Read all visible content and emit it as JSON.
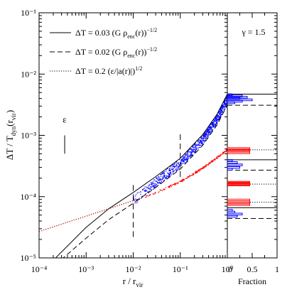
{
  "chart_data": [
    {
      "type": "line",
      "xlabel_main": "r / r",
      "xlabel_sub": "vir",
      "ylabel_main": "ΔT / T",
      "ylabel_sub1": "dyn",
      "ylabel_mid": "(r",
      "ylabel_sub2": "vir",
      "ylabel_end": ")",
      "x_scale": "log",
      "y_scale": "log",
      "xlim": [
        0.0001,
        1
      ],
      "ylim": [
        1e-05,
        0.1
      ],
      "x_tick_labels": [
        "10⁻⁴",
        "10⁻³",
        "10⁻²",
        "10⁻¹",
        "10⁰"
      ],
      "y_tick_labels": [
        "10⁻⁵",
        "10⁻⁴",
        "10⁻³",
        "10⁻²",
        "10⁻¹"
      ],
      "legend_placement": "top-left",
      "legend": [
        {
          "style": "solid",
          "text": "ΔT = 0.03 (G ρ_enc(r))^-1/2",
          "lhs": "ΔT = 0.03 (G ρ",
          "sub": "enc",
          "rhs": "(r))",
          "sup": "−1/2"
        },
        {
          "style": "dashed",
          "text": "ΔT = 0.02 (G ρ_enc(r))^-1/2",
          "lhs": "ΔT = 0.02 (G ρ",
          "sub": "enc",
          "rhs": "(r))",
          "sup": "−1/2"
        },
        {
          "style": "dotted",
          "text": "ΔT = 0.2 (ε/|a(r)|)^1/2",
          "lhs": "ΔT = 0.2 (ε/|a(r)|)",
          "sub": "",
          "rhs": "",
          "sup": "1/2"
        }
      ],
      "epsilon_label": "ε",
      "epsilon_bar_dex": [
        -3.3,
        -3.0
      ],
      "epsilon_bar_x": 0.00035,
      "series": [
        {
          "style": "solid",
          "color": "#000000",
          "x": [
            0.00016,
            0.001,
            0.003,
            0.01,
            0.03,
            0.1,
            0.3,
            0.6,
            1.0
          ],
          "y": [
            7.7e-06,
            3.16e-05,
            6.32e-05,
            0.000117,
            0.000212,
            0.000422,
            0.00103,
            0.0022,
            0.0047
          ]
        },
        {
          "style": "dashed",
          "color": "#000000",
          "x": [
            0.00022,
            0.001,
            0.003,
            0.01,
            0.03,
            0.1,
            0.3,
            0.6,
            1.0
          ],
          "y": [
            7.7e-06,
            2.1e-05,
            4.2e-05,
            7.8e-05,
            0.000141,
            0.000281,
            0.00069,
            0.00147,
            0.0031
          ]
        },
        {
          "style": "dotted",
          "color": "#aa0000",
          "x": [
            0.0001,
            0.001,
            0.01,
            0.015
          ],
          "y": [
            2.7e-05,
            4.8e-05,
            8.6e-05,
            9.4e-05
          ]
        }
      ],
      "particles": [
        {
          "color": "#0000ff",
          "x_range": [
            0.01,
            1.0
          ],
          "y_at_x": [
            [
              0.01,
              8.5e-05
            ],
            [
              0.03,
              0.00017
            ],
            [
              0.1,
              0.00035
            ],
            [
              0.3,
              0.00085
            ],
            [
              0.6,
              0.0018
            ],
            [
              1.0,
              0.0038
            ]
          ],
          "scatter_dex": 0.08
        },
        {
          "color": "#ff0000",
          "x_range": [
            0.015,
            1.0
          ],
          "y_at_x": [
            [
              0.015,
              9.4e-05
            ],
            [
              0.03,
              0.000115
            ],
            [
              0.1,
              0.000175
            ],
            [
              0.3,
              0.00029
            ],
            [
              0.6,
              0.00043
            ],
            [
              1.0,
              0.00058
            ]
          ],
          "scatter_dex": 0.015
        }
      ],
      "vertical_dashed_x": [
        0.01,
        0.1
      ],
      "vertical_dashed_y": [
        [
          2.2e-05,
          0.00016
        ],
        [
          0.00021,
          0.0011
        ]
      ]
    },
    {
      "type": "bar",
      "title": "γ = 1.5",
      "xlabel": "Fraction",
      "x_tick_labels": [
        "0",
        "0.5",
        "1"
      ],
      "xlim": [
        0,
        1
      ],
      "orientation": "horizontal",
      "horizontal_lines": [
        {
          "style": "solid",
          "y": 0.0047
        },
        {
          "style": "dashed",
          "y": 0.0031
        },
        {
          "style": "dotted",
          "y": 0.00058
        },
        {
          "style": "solid",
          "y": 0.0004
        },
        {
          "style": "dashed",
          "y": 0.00027
        },
        {
          "style": "dotted",
          "y": 0.00016
        },
        {
          "style": "solid",
          "y": 6.6e-05
        },
        {
          "style": "dashed",
          "y": 4.4e-05
        },
        {
          "style": "dotted",
          "y": 8.1e-05
        }
      ],
      "histograms": [
        {
          "color": "#0000ff",
          "bins_y": [
            0.0034,
            0.0036,
            0.0038,
            0.004,
            0.0042,
            0.0044,
            0.0046
          ],
          "fraction": [
            0.15,
            0.3,
            0.5,
            0.25,
            0.4,
            0.3,
            0.1
          ]
        },
        {
          "color": "#ff0000",
          "bins_y": [
            0.00052,
            0.00055,
            0.00058,
            0.00061
          ],
          "fraction": [
            0.45,
            0.45,
            0.45,
            0.45
          ]
        },
        {
          "color": "#0000ff",
          "bins_y": [
            0.00028,
            0.0003,
            0.00033,
            0.00036,
            0.00039
          ],
          "fraction": [
            0.1,
            0.25,
            0.3,
            0.2,
            0.1
          ]
        },
        {
          "color": "#ff0000",
          "bins_y": [
            0.000155,
            0.00016,
            0.000166,
            0.000172
          ],
          "fraction": [
            0.45,
            0.45,
            0.45,
            0.45
          ]
        },
        {
          "color": "#0000ff",
          "bins_y": [
            4.8e-05,
            5.2e-05,
            5.6e-05,
            6e-05
          ],
          "fraction": [
            0.2,
            0.3,
            0.15,
            0.1
          ]
        },
        {
          "color": "#ff0000",
          "bins_y": [
            7.4e-05,
            7.8e-05,
            8.3e-05,
            8.8e-05
          ],
          "fraction": [
            0.45,
            0.45,
            0.45,
            0.45
          ]
        }
      ]
    }
  ]
}
